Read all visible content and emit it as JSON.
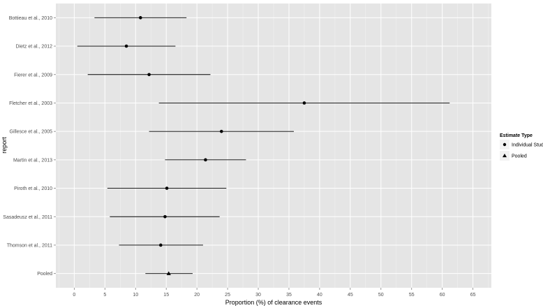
{
  "chart_data": {
    "type": "forest",
    "xlabel": "Proportion (%) of clearance events",
    "ylabel": "report",
    "xlim": [
      -3,
      68
    ],
    "xticks": [
      0,
      5,
      10,
      15,
      20,
      25,
      30,
      35,
      40,
      45,
      50,
      55,
      60,
      65
    ],
    "grid": true,
    "background": "#e5e5e5",
    "grid_color": "#ffffff",
    "legend": {
      "title": "Estimate Type",
      "placement": "right",
      "entries": [
        {
          "label": "Individual Study",
          "shape": "circle"
        },
        {
          "label": "Pooled",
          "shape": "triangle"
        }
      ]
    },
    "rows": [
      {
        "label": "Bottieau et al., 2010",
        "estimate": 10.8,
        "lower": 3.3,
        "upper": 18.3,
        "type": "Individual Study"
      },
      {
        "label": "Dietz et al., 2012",
        "estimate": 8.5,
        "lower": 0.5,
        "upper": 16.5,
        "type": "Individual Study"
      },
      {
        "label": "Fierer et al., 2009",
        "estimate": 12.2,
        "lower": 2.2,
        "upper": 22.2,
        "type": "Individual Study"
      },
      {
        "label": "Fletcher et al., 2003",
        "estimate": 37.5,
        "lower": 13.8,
        "upper": 61.2,
        "type": "Individual Study"
      },
      {
        "label": "Gillesce et al., 2005",
        "estimate": 24.0,
        "lower": 12.2,
        "upper": 35.8,
        "type": "Individual Study"
      },
      {
        "label": "Martin et al., 2013",
        "estimate": 21.4,
        "lower": 14.8,
        "upper": 28.0,
        "type": "Individual Study"
      },
      {
        "label": "Piroth et al., 2010",
        "estimate": 15.1,
        "lower": 5.4,
        "upper": 24.8,
        "type": "Individual Study"
      },
      {
        "label": "Sasadeusz et al., 2011",
        "estimate": 14.8,
        "lower": 5.8,
        "upper": 23.7,
        "type": "Individual Study"
      },
      {
        "label": "Thomson et al., 2011",
        "estimate": 14.1,
        "lower": 7.3,
        "upper": 21.0,
        "type": "Individual Study"
      },
      {
        "label": "Pooled",
        "estimate": 15.4,
        "lower": 11.6,
        "upper": 19.3,
        "type": "Pooled"
      }
    ]
  }
}
